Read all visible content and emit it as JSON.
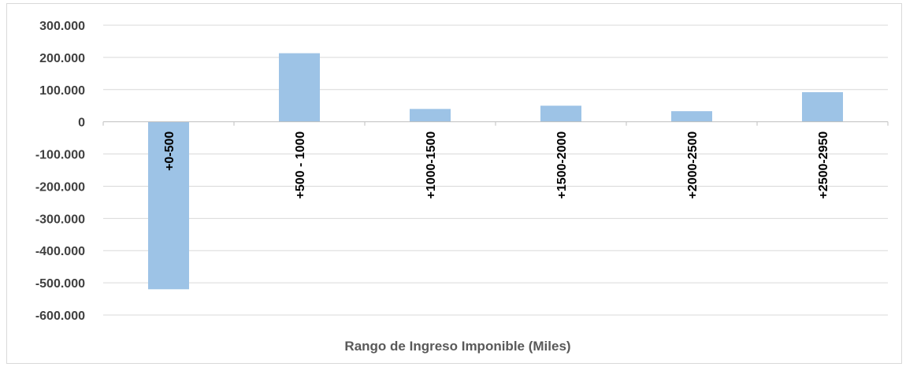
{
  "chart_data": {
    "type": "bar",
    "categories": [
      "+0-500",
      "+500 - 1000",
      "+1000-1500",
      "+1500-2000",
      "+2000-2500",
      "+2500-2950"
    ],
    "values": [
      -520000,
      213000,
      40000,
      50000,
      33000,
      92000
    ],
    "xlabel": "Rango de Ingreso Imponible (Miles)",
    "ylabel": "",
    "ylim": [
      -600000,
      300000
    ],
    "y_ticks": [
      300000,
      200000,
      100000,
      0,
      -100000,
      -200000,
      -300000,
      -400000,
      -500000,
      -600000
    ],
    "y_tick_labels": [
      "300.000",
      "200.000",
      "100.000",
      "0",
      "-100.000",
      "-200.000",
      "-300.000",
      "-400.000",
      "-500.000",
      "-600.000"
    ],
    "grid": true,
    "legend": "none",
    "colors": {
      "bar": "#9dc3e6",
      "grid": "#d9d9d9",
      "axis": "#bfbfbf"
    }
  }
}
